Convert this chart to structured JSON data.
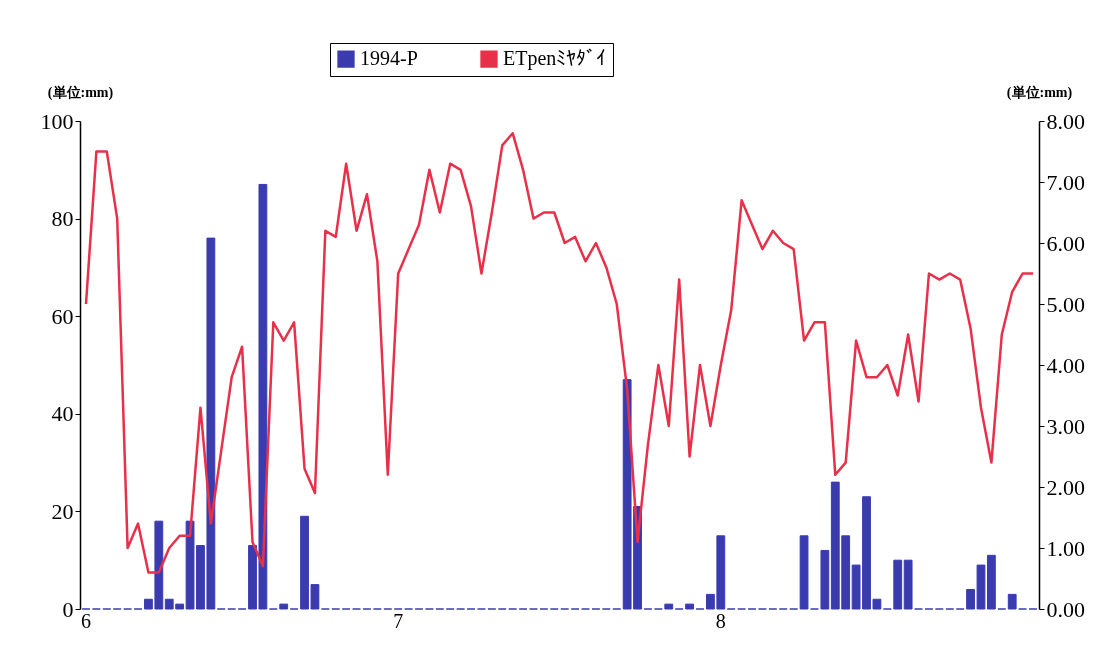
{
  "chart_data": {
    "type": "bar",
    "categories": [
      "6",
      null,
      null,
      null,
      null,
      null,
      null,
      null,
      null,
      null,
      null,
      null,
      null,
      null,
      null,
      null,
      null,
      null,
      null,
      null,
      null,
      null,
      null,
      null,
      null,
      null,
      null,
      null,
      null,
      null,
      "7",
      null,
      null,
      null,
      null,
      null,
      null,
      null,
      null,
      null,
      null,
      null,
      null,
      null,
      null,
      null,
      null,
      null,
      null,
      null,
      null,
      null,
      null,
      null,
      null,
      null,
      null,
      null,
      null,
      null,
      null,
      "8",
      null,
      null,
      null,
      null,
      null,
      null,
      null,
      null,
      null,
      null,
      null,
      null,
      null,
      null,
      null,
      null,
      null,
      null,
      null,
      null,
      null,
      null,
      null,
      null,
      null,
      null,
      null,
      null,
      null,
      null
    ],
    "series": [
      {
        "name": "1994-P",
        "color": "#3b3bb0",
        "values": [
          0,
          0,
          0,
          0,
          0,
          0,
          2,
          18,
          2,
          1,
          18,
          13,
          76,
          0,
          0,
          0,
          13,
          87,
          0,
          1,
          0,
          19,
          5,
          0,
          0,
          0,
          0,
          0,
          0,
          0,
          0,
          0,
          0,
          0,
          0,
          0,
          0,
          0,
          0,
          0,
          0,
          0,
          0,
          0,
          0,
          0,
          0,
          0,
          0,
          0,
          0,
          0,
          47,
          21,
          0,
          0,
          1,
          0,
          1,
          0,
          3,
          15,
          0,
          0,
          0,
          0,
          0,
          0,
          0,
          15,
          0,
          12,
          26,
          15,
          9,
          23,
          2,
          0,
          10,
          10,
          0,
          0,
          0,
          0,
          0,
          4,
          9,
          11,
          0,
          3,
          0,
          0
        ]
      },
      {
        "name": "ETpenﾐﾔﾀﾞｲ",
        "type": "line",
        "axis": "y2",
        "color": "#e8304a",
        "values": [
          5.0,
          7.5,
          7.5,
          6.4,
          1.0,
          1.4,
          0.6,
          0.6,
          1.0,
          1.2,
          1.2,
          3.3,
          1.4,
          2.6,
          3.8,
          4.3,
          1.1,
          0.7,
          4.7,
          4.4,
          4.7,
          2.3,
          1.9,
          6.2,
          6.1,
          7.3,
          6.2,
          6.8,
          5.7,
          2.2,
          5.5,
          5.9,
          6.3,
          7.2,
          6.5,
          7.3,
          7.2,
          6.6,
          5.5,
          6.5,
          7.6,
          7.8,
          7.2,
          6.4,
          6.5,
          6.5,
          6.0,
          6.1,
          5.7,
          6.0,
          5.6,
          5.0,
          3.6,
          1.1,
          2.7,
          4.0,
          3.0,
          5.4,
          2.5,
          4.0,
          3.0,
          4.0,
          4.9,
          6.7,
          6.3,
          5.9,
          6.2,
          6.0,
          5.9,
          4.4,
          4.7,
          4.7,
          2.2,
          2.4,
          4.4,
          3.8,
          3.8,
          4.0,
          3.5,
          4.5,
          3.4,
          5.5,
          5.4,
          5.5,
          5.4,
          4.6,
          3.3,
          2.4,
          4.5,
          5.2,
          5.5,
          5.5
        ]
      }
    ],
    "ylabel": "(単位:mm)",
    "y2label": "(単位:mm)",
    "ylim": [
      0,
      100
    ],
    "yticks": [
      0,
      20,
      40,
      60,
      80,
      100
    ],
    "y2lim": [
      0,
      8
    ],
    "y2ticks": [
      {
        "value": 0,
        "label": "0.00"
      },
      {
        "value": 1,
        "label": "1.00"
      },
      {
        "value": 2,
        "label": "2.00"
      },
      {
        "value": 3,
        "label": "3.00"
      },
      {
        "value": 4,
        "label": "4.00"
      },
      {
        "value": 5,
        "label": "5.00"
      },
      {
        "value": 6,
        "label": "6.00"
      },
      {
        "value": 7,
        "label": "7.00"
      },
      {
        "value": 8,
        "label": "8.00"
      }
    ],
    "grid": false,
    "legend": "top",
    "marker": "none",
    "line_style": "solid"
  }
}
